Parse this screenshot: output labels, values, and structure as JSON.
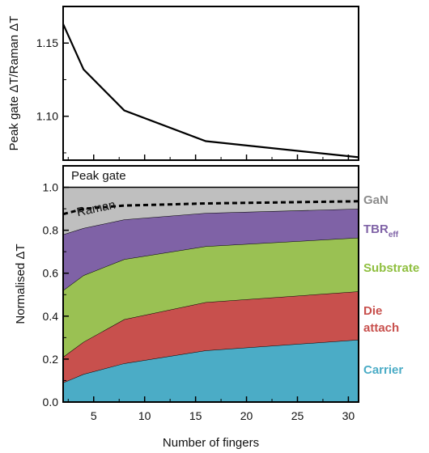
{
  "chart_data": [
    {
      "type": "line",
      "ylabel": "Peak gate ΔT/Raman ΔT",
      "xlim": [
        2,
        31
      ],
      "ylim": [
        1.07,
        1.175
      ],
      "yticks": [
        "1.10",
        "1.15"
      ],
      "ytick_values": [
        1.1,
        1.15
      ],
      "series": [
        {
          "x": [
            2,
            4,
            8,
            16,
            31
          ],
          "values": [
            1.163,
            1.132,
            1.104,
            1.083,
            1.072
          ]
        }
      ]
    },
    {
      "type": "area",
      "ylabel": "Normalised ΔT",
      "xlabel": "Number of fingers",
      "xlim": [
        2,
        31
      ],
      "ylim": [
        0,
        1.1
      ],
      "xticks": [
        "5",
        "10",
        "15",
        "20",
        "25",
        "30"
      ],
      "xtick_values": [
        5,
        10,
        15,
        20,
        25,
        30
      ],
      "yticks": [
        "0.0",
        "0.2",
        "0.4",
        "0.6",
        "0.8",
        "1.0"
      ],
      "ytick_values": [
        0,
        0.2,
        0.4,
        0.6,
        0.8,
        1.0
      ],
      "x": [
        2,
        4,
        8,
        16,
        31
      ],
      "stack_boundaries": [
        {
          "upper_of": "Carrier",
          "values": [
            0.09,
            0.13,
            0.18,
            0.24,
            0.29
          ]
        },
        {
          "upper_of": "Die attach",
          "values": [
            0.21,
            0.28,
            0.385,
            0.465,
            0.515
          ]
        },
        {
          "upper_of": "Substrate",
          "values": [
            0.52,
            0.59,
            0.665,
            0.725,
            0.765
          ]
        },
        {
          "upper_of": "TBR",
          "values": [
            0.78,
            0.81,
            0.85,
            0.88,
            0.9
          ]
        },
        {
          "upper_of": "GaN",
          "values": [
            1.0,
            1.0,
            1.0,
            1.0,
            1.0
          ]
        }
      ],
      "raman_line": {
        "label": "Raman",
        "values": [
          0.875,
          0.9,
          0.915,
          0.925,
          0.935
        ]
      },
      "annotations": {
        "top_band": "Peak gate",
        "raman": "Raman"
      },
      "layers": [
        {
          "name": "GaN",
          "color": "#bfbfbf",
          "label_color": "#8c8c8c"
        },
        {
          "name": "TBR",
          "subscript": "eff",
          "color": "#7f62a6",
          "label_color": "#7f62a6"
        },
        {
          "name": "Substrate",
          "color": "#9ac153",
          "label_color": "#8fbf3f"
        },
        {
          "name": "Die",
          "name2": "attach",
          "color": "#c8504d",
          "label_color": "#c8504d"
        },
        {
          "name": "Carrier",
          "color": "#4bacc6",
          "label_color": "#4bacc6"
        }
      ]
    }
  ]
}
